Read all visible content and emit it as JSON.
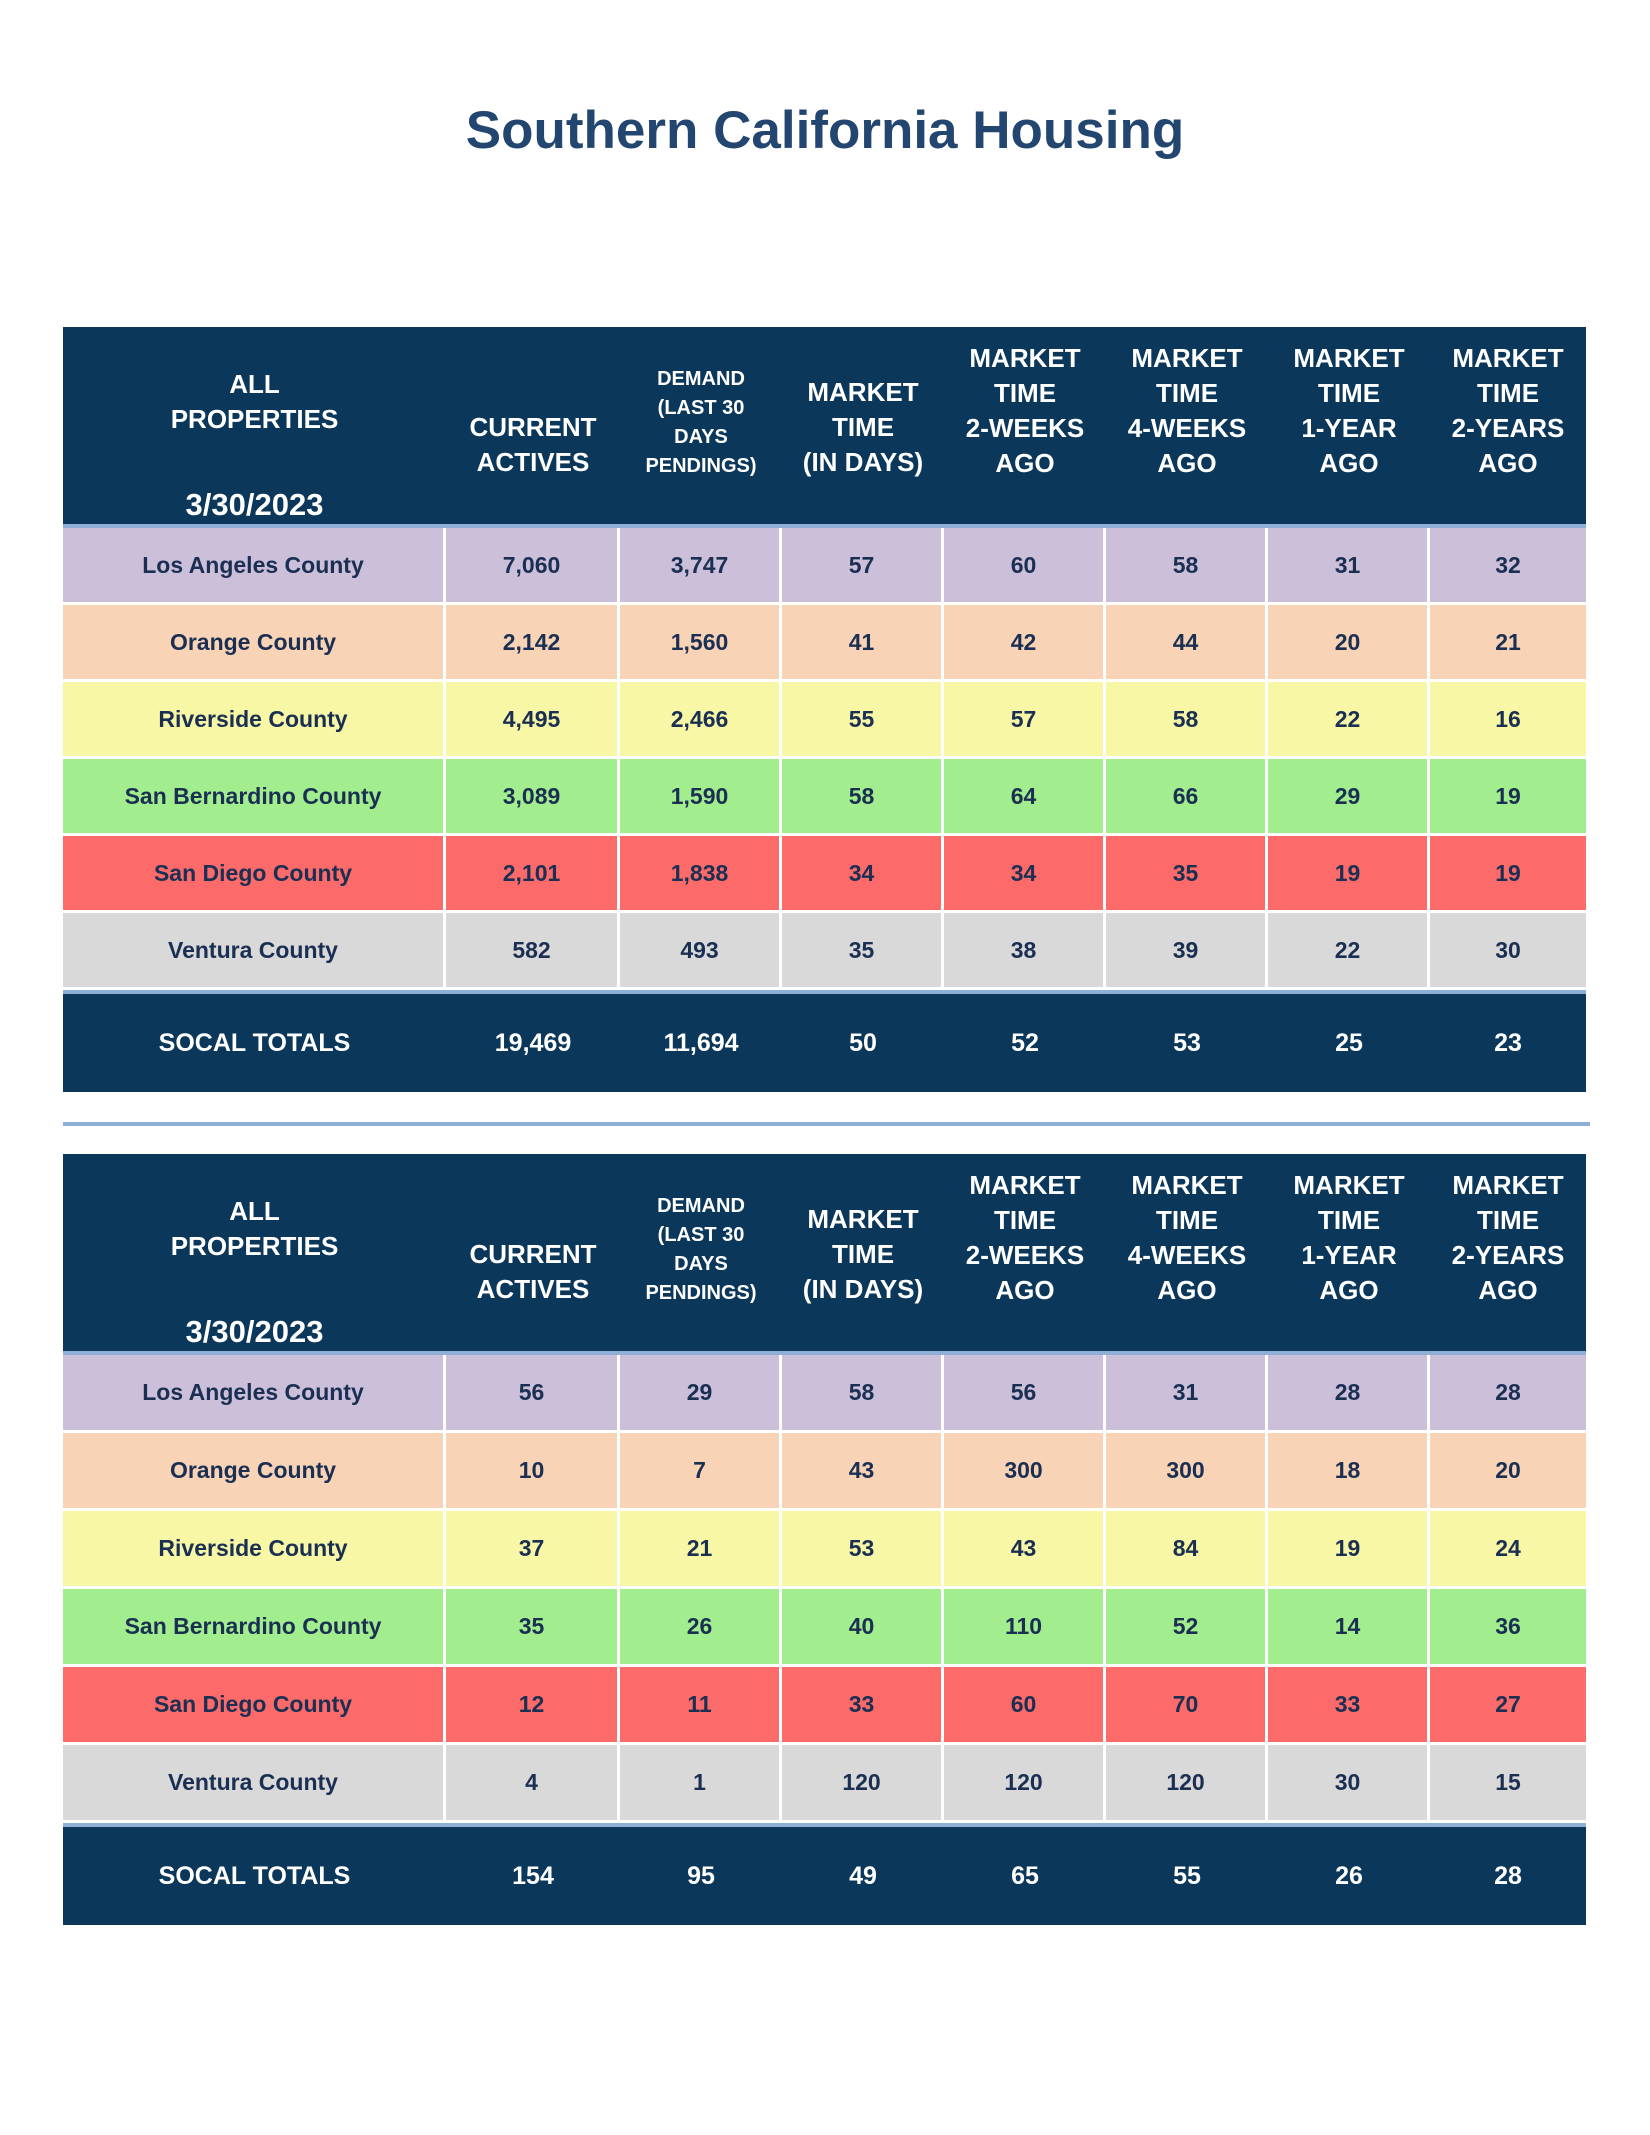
{
  "title": "Southern California Housing",
  "headers": {
    "all_properties": "ALL\nPROPERTIES",
    "current_actives": "CURRENT\nACTIVES",
    "demand": "DEMAND\n(LAST 30\nDAYS\nPENDINGS)",
    "market_time": "MARKET\nTIME\n(IN DAYS)",
    "mt_2weeks": "MARKET\nTIME\n2-WEEKS\nAGO",
    "mt_4weeks": "MARKET\nTIME\n4-WEEKS\nAGO",
    "mt_1year": "MARKET\nTIME\n1-YEAR\nAGO",
    "mt_2years": "MARKET\nTIME\n2-YEARS\nAGO"
  },
  "row_colors": [
    "#cbbfd9",
    "#f9d3b6",
    "#f7f7a6",
    "#a2ee8e",
    "#fc6a6a",
    "#d9d9d9"
  ],
  "tables": [
    {
      "date": "3/30/2023",
      "rows": [
        {
          "county": "Los Angeles County",
          "values": [
            "7,060",
            "3,747",
            "57",
            "60",
            "58",
            "31",
            "32"
          ]
        },
        {
          "county": "Orange County",
          "values": [
            "2,142",
            "1,560",
            "41",
            "42",
            "44",
            "20",
            "21"
          ]
        },
        {
          "county": "Riverside County",
          "values": [
            "4,495",
            "2,466",
            "55",
            "57",
            "58",
            "22",
            "16"
          ]
        },
        {
          "county": "San Bernardino County",
          "values": [
            "3,089",
            "1,590",
            "58",
            "64",
            "66",
            "29",
            "19"
          ]
        },
        {
          "county": "San Diego County",
          "values": [
            "2,101",
            "1,838",
            "34",
            "34",
            "35",
            "19",
            "19"
          ]
        },
        {
          "county": "Ventura County",
          "values": [
            "582",
            "493",
            "35",
            "38",
            "39",
            "22",
            "30"
          ]
        }
      ],
      "totals": {
        "label": "SOCAL TOTALS",
        "values": [
          "19,469",
          "11,694",
          "50",
          "52",
          "53",
          "25",
          "23"
        ]
      }
    },
    {
      "date": "3/30/2023",
      "rows": [
        {
          "county": "Los Angeles County",
          "values": [
            "56",
            "29",
            "58",
            "56",
            "31",
            "28",
            "28"
          ]
        },
        {
          "county": "Orange County",
          "values": [
            "10",
            "7",
            "43",
            "300",
            "300",
            "18",
            "20"
          ]
        },
        {
          "county": "Riverside County",
          "values": [
            "37",
            "21",
            "53",
            "43",
            "84",
            "19",
            "24"
          ]
        },
        {
          "county": "San Bernardino County",
          "values": [
            "35",
            "26",
            "40",
            "110",
            "52",
            "14",
            "36"
          ]
        },
        {
          "county": "San Diego County",
          "values": [
            "12",
            "11",
            "33",
            "60",
            "70",
            "33",
            "27"
          ]
        },
        {
          "county": "Ventura County",
          "values": [
            "4",
            "1",
            "120",
            "120",
            "120",
            "30",
            "15"
          ]
        }
      ],
      "totals": {
        "label": "SOCAL TOTALS",
        "values": [
          "154",
          "95",
          "49",
          "65",
          "55",
          "26",
          "28"
        ]
      }
    }
  ]
}
